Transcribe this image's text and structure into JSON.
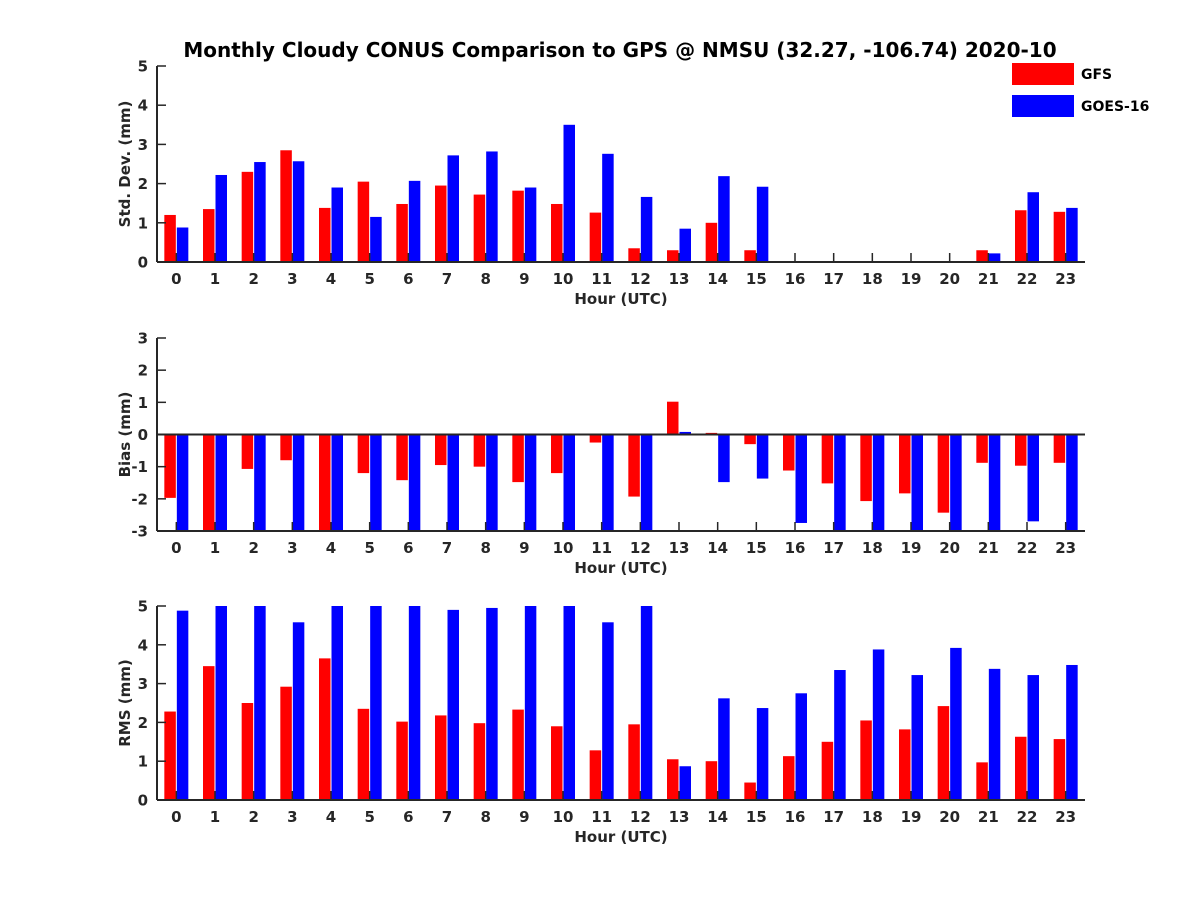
{
  "chart_data": [
    {
      "type": "bar",
      "title": "Monthly Cloudy CONUS Comparison to GPS @ NMSU (32.27, -106.74) 2020-10",
      "xlabel": "Hour (UTC)",
      "ylabel": "Std. Dev. (mm)",
      "ylim": [
        0,
        5
      ],
      "yticks": [
        0,
        1,
        2,
        3,
        4,
        5
      ],
      "categories": [
        "0",
        "1",
        "2",
        "3",
        "4",
        "5",
        "6",
        "7",
        "8",
        "9",
        "10",
        "11",
        "12",
        "13",
        "14",
        "15",
        "16",
        "17",
        "18",
        "19",
        "20",
        "21",
        "22",
        "23"
      ],
      "series": [
        {
          "name": "GFS",
          "color": "#ff0000",
          "values": [
            1.2,
            1.35,
            2.3,
            2.85,
            1.38,
            2.05,
            1.48,
            1.95,
            1.72,
            1.82,
            1.48,
            1.26,
            0.35,
            0.3,
            1.0,
            0.3,
            0,
            0,
            0,
            0,
            0,
            0.3,
            1.32,
            1.28
          ]
        },
        {
          "name": "GOES-16",
          "color": "#0000ff",
          "values": [
            0.88,
            2.22,
            2.55,
            2.57,
            1.9,
            1.15,
            2.07,
            2.72,
            2.82,
            1.9,
            3.5,
            2.76,
            1.66,
            0.85,
            2.19,
            1.92,
            0,
            0,
            0,
            0,
            0,
            0.22,
            1.78,
            1.38
          ]
        }
      ],
      "legend": {
        "placement": "top-right",
        "entries": [
          "GFS",
          "GOES-16"
        ]
      },
      "grid": false
    },
    {
      "type": "bar",
      "title": "",
      "xlabel": "Hour (UTC)",
      "ylabel": "Bias (mm)",
      "ylim": [
        -3,
        3
      ],
      "yticks": [
        -3,
        -2,
        -1,
        0,
        1,
        2,
        3
      ],
      "categories": [
        "0",
        "1",
        "2",
        "3",
        "4",
        "5",
        "6",
        "7",
        "8",
        "9",
        "10",
        "11",
        "12",
        "13",
        "14",
        "15",
        "16",
        "17",
        "18",
        "19",
        "20",
        "21",
        "22",
        "23"
      ],
      "series": [
        {
          "name": "GFS",
          "color": "#ff0000",
          "values": [
            -1.97,
            -3.0,
            -1.07,
            -0.8,
            -3.0,
            -1.2,
            -1.42,
            -0.95,
            -1.0,
            -1.48,
            -1.2,
            -0.25,
            -1.93,
            1.02,
            0.05,
            -0.3,
            -1.12,
            -1.52,
            -2.07,
            -1.83,
            -2.43,
            -0.88,
            -0.97,
            -0.88
          ]
        },
        {
          "name": "GOES-16",
          "color": "#0000ff",
          "values": [
            -3.0,
            -3.0,
            -3.0,
            -3.0,
            -3.0,
            -3.0,
            -3.0,
            -3.0,
            -3.0,
            -3.0,
            -3.0,
            -3.0,
            -3.0,
            0.08,
            -1.48,
            -1.37,
            -2.75,
            -3.0,
            -3.0,
            -3.0,
            -3.0,
            -3.0,
            -2.7,
            -3.0
          ]
        }
      ],
      "grid": false
    },
    {
      "type": "bar",
      "title": "",
      "xlabel": "Hour (UTC)",
      "ylabel": "RMS (mm)",
      "ylim": [
        0,
        5
      ],
      "yticks": [
        0,
        1,
        2,
        3,
        4,
        5
      ],
      "categories": [
        "0",
        "1",
        "2",
        "3",
        "4",
        "5",
        "6",
        "7",
        "8",
        "9",
        "10",
        "11",
        "12",
        "13",
        "14",
        "15",
        "16",
        "17",
        "18",
        "19",
        "20",
        "21",
        "22",
        "23"
      ],
      "series": [
        {
          "name": "GFS",
          "color": "#ff0000",
          "values": [
            2.28,
            3.45,
            2.5,
            2.92,
            3.65,
            2.35,
            2.02,
            2.18,
            1.98,
            2.33,
            1.9,
            1.28,
            1.95,
            1.05,
            1.0,
            0.45,
            1.13,
            1.5,
            2.05,
            1.82,
            2.42,
            0.97,
            1.63,
            1.57
          ]
        },
        {
          "name": "GOES-16",
          "color": "#0000ff",
          "values": [
            4.88,
            5.0,
            5.0,
            4.58,
            5.0,
            5.0,
            5.0,
            4.9,
            4.95,
            5.0,
            5.0,
            4.58,
            5.0,
            0.87,
            2.62,
            2.37,
            2.75,
            3.35,
            3.88,
            3.22,
            3.92,
            3.38,
            3.22,
            3.48
          ]
        }
      ],
      "grid": false
    }
  ]
}
